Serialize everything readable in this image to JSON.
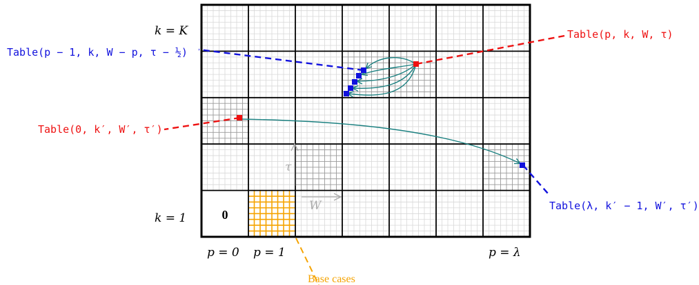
{
  "row_labels": {
    "top": "k = K",
    "bottom": "k = 1"
  },
  "column_labels": {
    "first": "p = 0",
    "second": "p = 1",
    "last": "p = λ"
  },
  "base_cell_value": "0",
  "axis_hints": {
    "vertical": "τ",
    "horizontal": "W"
  },
  "annotations": {
    "table_p_k": "Table(p, k, W, τ)",
    "table_pm1": "Table(p − 1, k, W − p, τ − ½)",
    "table_0": "Table(0, k′, W′, τ′)",
    "table_lambda": "Table(λ, k′ − 1, W′, τ′)",
    "base_cases": "Base cases"
  },
  "colors": {
    "red": "#ee1111",
    "blue": "#1111dd",
    "teal": "#1b8080",
    "orange": "#f5a300",
    "grid_light": "#d8d8d8",
    "grid_dark": "#9a9a9a"
  }
}
